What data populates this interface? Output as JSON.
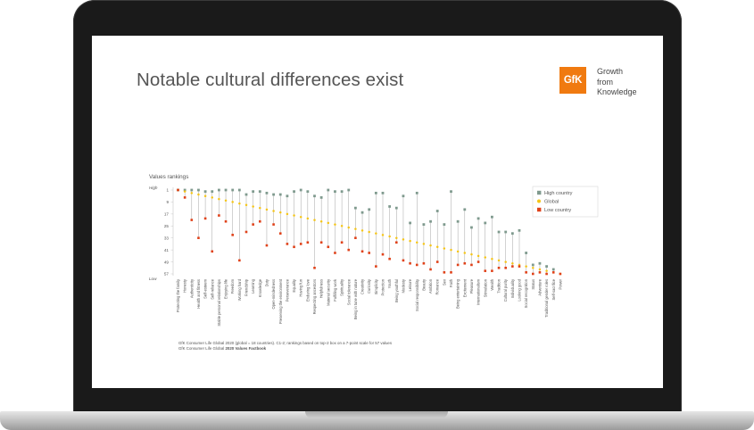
{
  "slide": {
    "title": "Notable cultural differences exist",
    "logo": {
      "mark": "GfK",
      "line1": "Growth",
      "line2": "from",
      "line3": "Knowledge",
      "color": "#f07a10"
    },
    "footnote1": "GfK Consumer Life Global 2020 (global = 18 countries). C1-2; rankings based on top-2 box on a 7-point scale for 57 values",
    "footnote2_prefix": "GfK Consumer Life Global ",
    "footnote2_bold": "2020 Values Factbook"
  },
  "chart_data": {
    "type": "scatter",
    "title": "Values rankings",
    "ylabel_top": "High",
    "ylabel_bottom": "Low",
    "ylim": [
      1,
      57
    ],
    "yticks": [
      1,
      9,
      17,
      25,
      33,
      41,
      49,
      57
    ],
    "colors": {
      "high": "#7f9a8e",
      "global": "#f5c518",
      "low": "#e0421a"
    },
    "legend": {
      "position": "top-right",
      "items": [
        "High country",
        "Global",
        "Low country"
      ]
    },
    "categories": [
      "Protecting the family",
      "Honesty",
      "Authenticity",
      "Health and fitness",
      "Self-esteem",
      "Self-reliance",
      "Stable personal relationships",
      "Enjoying life",
      "Freedom",
      "Working hard",
      "Friendship",
      "Learning",
      "Knowledge",
      "Duty",
      "Open-mindedness",
      "Preserving the environment",
      "Perseverance",
      "Equality",
      "Having fun",
      "Enduring love",
      "Respecting ancestors",
      "Helpfulness",
      "Material security",
      "Fulfilling work",
      "Spirituality",
      "Social tolerance",
      "Being in tune with nature",
      "Creativity",
      "Curiosity",
      "Simplicity",
      "Protection",
      "Youth",
      "Being youthful",
      "Modesty",
      "Leisure",
      "Social responsibility",
      "Beauty",
      "Ambition",
      "Romance",
      "Sex",
      "Faith",
      "Being entertaining",
      "Excitement",
      "Pleasure",
      "Internationalism",
      "Stimulation",
      "Wealth",
      "Tradition",
      "Cultural purity",
      "Individuality",
      "Looking good",
      "Social recognition",
      "Status",
      "Adventure",
      "Traditional gender roles",
      "Self-sacrifice",
      "Power"
    ],
    "global": [
      1,
      2,
      3,
      4,
      5,
      6,
      7,
      8,
      9,
      10,
      11,
      12,
      13,
      14,
      15,
      16,
      17,
      18,
      19,
      20,
      21,
      22,
      23,
      24,
      25,
      26,
      27,
      28,
      29,
      30,
      31,
      32,
      33,
      34,
      35,
      36,
      37,
      38,
      39,
      40,
      41,
      42,
      43,
      44,
      45,
      46,
      47,
      48,
      49,
      50,
      51,
      52,
      53,
      54,
      55,
      56,
      57
    ],
    "high_country": [
      1,
      1,
      1,
      1,
      2,
      2,
      1,
      1,
      1,
      1,
      4,
      2,
      2,
      3,
      4,
      4,
      5,
      2,
      1,
      2,
      5,
      6,
      1,
      2,
      2,
      1,
      13,
      16,
      14,
      3,
      3,
      12,
      13,
      5,
      23,
      3,
      24,
      22,
      15,
      24,
      2,
      22,
      14,
      26,
      20,
      23,
      19,
      29,
      29,
      30,
      28,
      43,
      51,
      50,
      52,
      54,
      57
    ],
    "high_marks": [
      true,
      true,
      true,
      true,
      true,
      true,
      true,
      true,
      true,
      true,
      true,
      true,
      true,
      true,
      true,
      true,
      true,
      true,
      true,
      true,
      true,
      true,
      true,
      true,
      true,
      true,
      true,
      true,
      true,
      true,
      true,
      true,
      true,
      true,
      true,
      true,
      true,
      true,
      true,
      true,
      true,
      true,
      true,
      true,
      true,
      true,
      true,
      true,
      true,
      true,
      true,
      true,
      true,
      true,
      true,
      true,
      false
    ],
    "low_country": [
      1,
      6,
      21,
      33,
      20,
      42,
      18,
      22,
      31,
      48,
      29,
      24,
      22,
      38,
      24,
      30,
      37,
      39,
      37,
      36,
      53,
      36,
      39,
      43,
      36,
      41,
      33,
      42,
      43,
      52,
      44,
      47,
      36,
      48,
      50,
      51,
      50,
      54,
      49,
      56,
      56,
      51,
      50,
      51,
      49,
      55,
      55,
      53,
      53,
      52,
      52,
      56,
      57,
      56,
      57,
      56,
      57
    ]
  }
}
